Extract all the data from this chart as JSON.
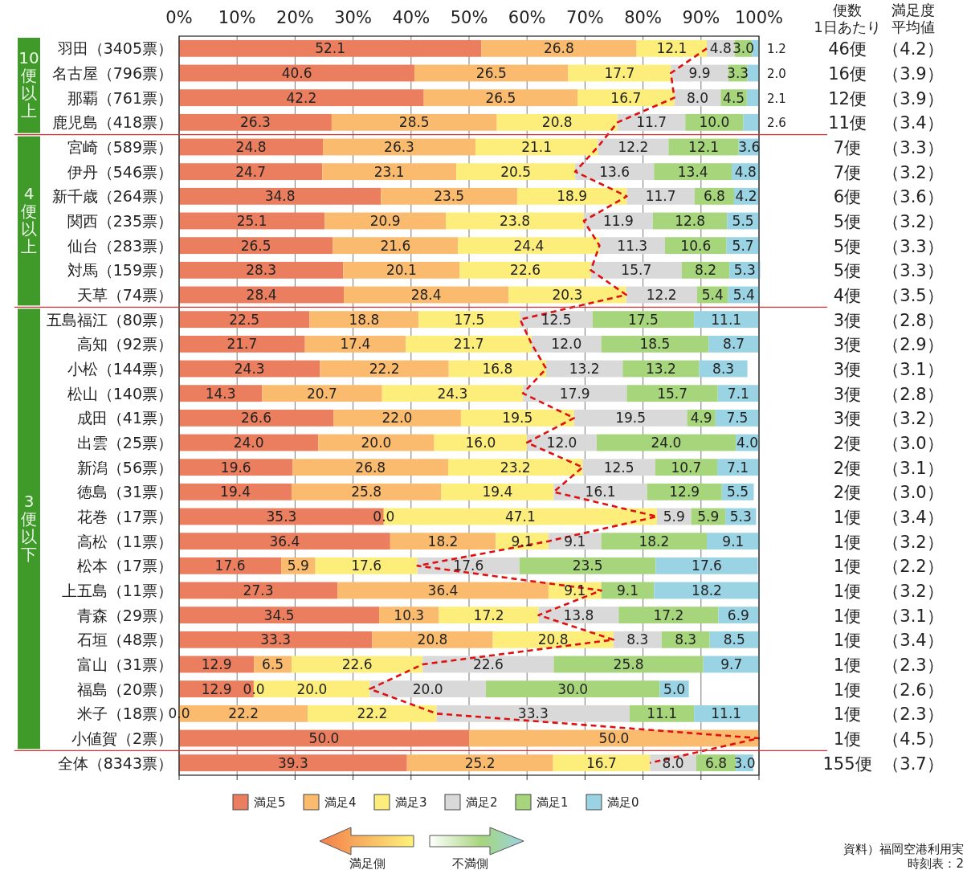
{
  "chart_data": {
    "type": "bar",
    "orientation": "horizontal",
    "stacked": true,
    "grid": "x",
    "legend": "bottom",
    "xlim": [
      0,
      100
    ],
    "xticks": [
      {
        "value": 0,
        "label": "0%"
      },
      {
        "value": 10,
        "label": "10%"
      },
      {
        "value": 20,
        "label": "20%"
      },
      {
        "value": 30,
        "label": "30%"
      },
      {
        "value": 40,
        "label": "40%"
      },
      {
        "value": 50,
        "label": "50%"
      },
      {
        "value": 60,
        "label": "60%"
      },
      {
        "value": 70,
        "label": "70%"
      },
      {
        "value": 80,
        "label": "80%"
      },
      {
        "value": 90,
        "label": "90%"
      },
      {
        "value": 100,
        "label": "100%"
      }
    ],
    "categories": [
      "羽田（3405票）",
      "名古屋（796票）",
      "那覇（761票）",
      "鹿児島（418票）",
      "宮崎（589票）",
      "伊丹（546票）",
      "新千歳（264票）",
      "関西（235票）",
      "仙台（283票）",
      "対馬（159票）",
      "天草（74票）",
      "五島福江（80票）",
      "高知（92票）",
      "小松（144票）",
      "松山（140票）",
      "成田（41票）",
      "出雲（25票）",
      "新潟（56票）",
      "徳島（31票）",
      "花巻（17票）",
      "高松（11票）",
      "松本（17票）",
      "上五島（11票）",
      "青森（29票）",
      "石垣（48票）",
      "富山（31票）",
      "福島（20票）",
      "米子（18票）",
      "小値賀（2票）",
      "全体（8343票）"
    ],
    "series": [
      {
        "name": "満足5",
        "color": "#ea7e5e",
        "values": [
          52.1,
          40.6,
          42.2,
          26.3,
          24.8,
          24.7,
          34.8,
          25.1,
          26.5,
          28.3,
          28.4,
          22.5,
          21.7,
          24.3,
          14.3,
          26.6,
          24.0,
          19.6,
          19.4,
          35.3,
          36.4,
          17.6,
          27.3,
          34.5,
          33.3,
          12.9,
          12.9,
          0.0,
          50.0,
          39.3
        ],
        "value_labels": [
          "52.1",
          "40.6",
          "42.2",
          "26.3",
          "24.8",
          "24.7",
          "34.8",
          "25.1",
          "26.5",
          "28.3",
          "28.4",
          "22.5",
          "21.7",
          "24.3",
          "14.3",
          "26.6",
          "24.0",
          "19.6",
          "19.4",
          "35.3",
          "36.4",
          "17.6",
          "27.3",
          "34.5",
          "33.3",
          "12.9",
          "12.9",
          "0.0",
          "50.0",
          "39.3"
        ]
      },
      {
        "name": "満足4",
        "color": "#fbbb6e",
        "values": [
          26.8,
          26.5,
          26.5,
          28.5,
          26.3,
          23.1,
          23.5,
          20.9,
          21.6,
          20.1,
          28.4,
          18.8,
          17.4,
          22.2,
          20.7,
          22.0,
          20.0,
          26.8,
          25.8,
          0.0,
          18.2,
          5.9,
          36.4,
          10.3,
          20.8,
          6.5,
          0.0,
          22.2,
          50.0,
          25.2
        ],
        "value_labels": [
          "26.8",
          "26.5",
          "26.5",
          "28.5",
          "26.3",
          "23.1",
          "23.5",
          "20.9",
          "21.6",
          "20.1",
          "28.4",
          "18.8",
          "17.4",
          "22.2",
          "20.7",
          "22.0",
          "20.0",
          "26.8",
          "25.8",
          "0.0",
          "18.2",
          "5.9",
          "36.4",
          "10.3",
          "20.8",
          "6.5",
          "0.0",
          "22.2",
          "50.0",
          "25.2"
        ]
      },
      {
        "name": "満足3",
        "color": "#fdee7c",
        "values": [
          12.1,
          17.7,
          16.7,
          20.8,
          21.1,
          20.5,
          18.9,
          23.8,
          24.4,
          22.6,
          20.3,
          17.5,
          21.7,
          16.8,
          24.3,
          19.5,
          16.0,
          23.2,
          19.4,
          47.1,
          9.1,
          17.6,
          9.1,
          17.2,
          20.8,
          22.6,
          20.0,
          22.2,
          null,
          16.7
        ],
        "value_labels": [
          "12.1",
          "17.7",
          "16.7",
          "20.8",
          "21.1",
          "20.5",
          "18.9",
          "23.8",
          "24.4",
          "22.6",
          "20.3",
          "17.5",
          "21.7",
          "16.8",
          "24.3",
          "19.5",
          "16.0",
          "23.2",
          "19.4",
          "47.1",
          "9.1",
          "17.6",
          "9.1",
          "17.2",
          "20.8",
          "22.6",
          "20.0",
          "22.2",
          null,
          "16.7"
        ]
      },
      {
        "name": "満足2",
        "color": "#d9d9d9",
        "values": [
          4.8,
          9.9,
          8.0,
          11.7,
          12.2,
          13.6,
          11.7,
          11.9,
          11.3,
          15.7,
          12.2,
          12.5,
          12.0,
          13.2,
          17.9,
          19.5,
          12.0,
          12.5,
          16.1,
          5.9,
          9.1,
          17.6,
          null,
          13.8,
          8.3,
          22.6,
          20.0,
          33.3,
          null,
          8.0
        ],
        "value_labels": [
          "4.8",
          "9.9",
          "8.0",
          "11.7",
          "12.2",
          "13.6",
          "11.7",
          "11.9",
          "11.3",
          "15.7",
          "12.2",
          "12.5",
          "12.0",
          "13.2",
          "17.9",
          "19.5",
          "12.0",
          "12.5",
          "16.1",
          "5.9",
          "9.1",
          "17.6",
          null,
          "13.8",
          "8.3",
          "22.6",
          "20.0",
          "33.3",
          null,
          "8.0"
        ]
      },
      {
        "name": "満足1",
        "color": "#a6d57c",
        "values": [
          3.0,
          3.3,
          4.5,
          10.0,
          12.1,
          13.4,
          6.8,
          12.8,
          10.6,
          8.2,
          5.4,
          17.5,
          18.5,
          13.2,
          15.7,
          4.9,
          24.0,
          10.7,
          12.9,
          5.9,
          18.2,
          23.5,
          9.1,
          17.2,
          8.3,
          25.8,
          30.0,
          11.1,
          null,
          6.8
        ],
        "value_labels": [
          "3.0",
          "3.3",
          "4.5",
          "10.0",
          "12.1",
          "13.4",
          "6.8",
          "12.8",
          "10.6",
          "8.2",
          "5.4",
          "17.5",
          "18.5",
          "13.2",
          "15.7",
          "4.9",
          "24.0",
          "10.7",
          "12.9",
          "5.9",
          "18.2",
          "23.5",
          "9.1",
          "17.2",
          "8.3",
          "25.8",
          "30.0",
          "11.1",
          null,
          "6.8"
        ]
      },
      {
        "name": "満足0",
        "color": "#9ad3e4",
        "values": [
          1.2,
          2.0,
          2.1,
          2.6,
          3.6,
          4.8,
          4.2,
          5.5,
          5.7,
          5.3,
          5.4,
          11.1,
          8.7,
          8.3,
          7.1,
          7.5,
          4.0,
          7.1,
          5.5,
          5.3,
          9.1,
          17.6,
          18.2,
          6.9,
          8.5,
          9.7,
          5.0,
          11.1,
          null,
          3.0
        ],
        "value_labels": [
          "1.2",
          "2.0",
          "2.1",
          "2.6",
          "3.6",
          "4.8",
          "4.2",
          "5.5",
          "5.7",
          "5.3",
          "5.4",
          "11.1",
          "8.7",
          "8.3",
          "7.1",
          "7.5",
          "4.0",
          "7.1",
          "5.5",
          "5.3",
          "9.1",
          "17.6",
          "18.2",
          "6.9",
          "8.5",
          "9.7",
          "5.0",
          "11.1",
          null,
          "3.0"
        ]
      },
      {
        "type": "line",
        "color": "#e01010",
        "line_style": "dashed",
        "values": [
          91.0,
          84.8,
          85.4,
          75.6,
          72.2,
          68.3,
          77.2,
          69.8,
          72.5,
          71.0,
          77.1,
          58.8,
          60.8,
          63.3,
          59.3,
          68.1,
          60.0,
          69.6,
          64.6,
          82.4,
          63.7,
          41.1,
          72.8,
          62.0,
          74.9,
          42.0,
          32.9,
          44.4,
          100.0,
          81.2
        ]
      }
    ],
    "annotations": [
      "便数",
      "1日あたり",
      "満足度",
      "平均値",
      "46便",
      "16便",
      "12便",
      "11便",
      "7便",
      "7便",
      "6便",
      "5便",
      "5便",
      "5便",
      "4便",
      "3便",
      "3便",
      "3便",
      "3便",
      "3便",
      "2便",
      "2便",
      "2便",
      "1便",
      "1便",
      "1便",
      "1便",
      "1便",
      "1便",
      "1便",
      "1便",
      "1便",
      "1便",
      "155便",
      "（4.2）",
      "（3.9）",
      "（3.9）",
      "（3.4）",
      "（3.3）",
      "（3.2）",
      "（3.6）",
      "（3.2）",
      "（3.3）",
      "（3.3）",
      "（3.5）",
      "（2.8）",
      "（2.9）",
      "（3.1）",
      "（2.8）",
      "（3.2）",
      "（3.0）",
      "（3.1）",
      "（3.0）",
      "（3.4）",
      "（3.2）",
      "（2.2）",
      "（3.2）",
      "（3.1）",
      "（3.4）",
      "（2.3）",
      "（2.6）",
      "（2.3）",
      "（4.5）",
      "（3.7）",
      "10便以上",
      "4便以上",
      "3便以下",
      "満足側",
      "不満側",
      "資料）福岡空港利用実",
      "時刻表：2"
    ]
  }
}
